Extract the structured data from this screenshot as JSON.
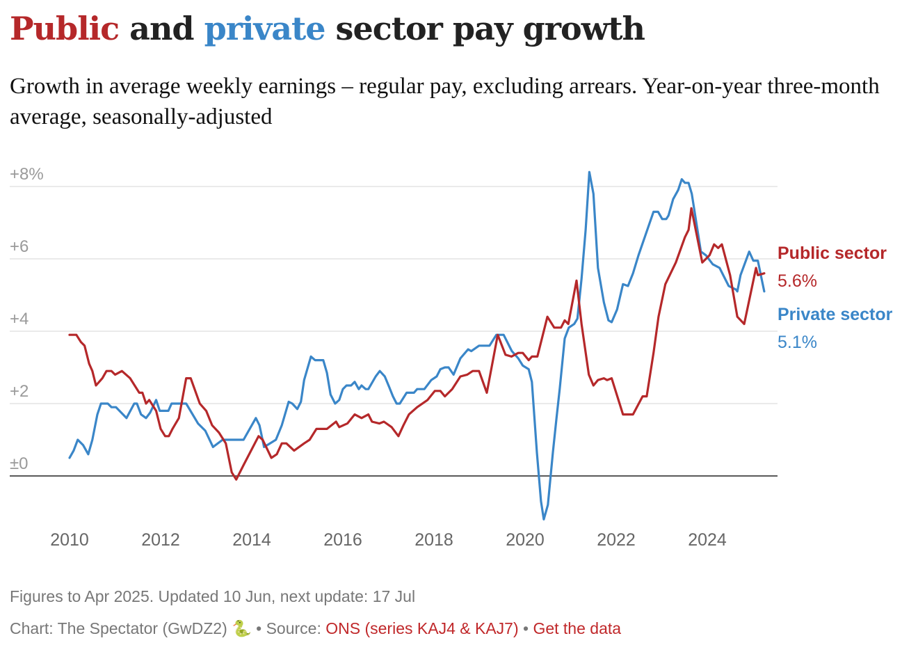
{
  "title": {
    "part1": "Public",
    "part2": " and ",
    "part3": "private",
    "part4": " sector pay growth"
  },
  "subtitle": "Growth in average weekly earnings – regular pay, excluding arrears. Year-on-year three-month average, seasonally-adjusted",
  "colors": {
    "public": "#b5282a",
    "private": "#3a86c8",
    "grid": "#e3e3e3",
    "axis": "#222"
  },
  "chart_data": {
    "type": "line",
    "title": "Public and private sector pay growth",
    "xlabel": "",
    "ylabel": "",
    "ylim": [
      -1.5,
      8.5
    ],
    "xlim": [
      2010,
      2025.25
    ],
    "grid": true,
    "yticks": [
      {
        "value": 8,
        "label": "+8%"
      },
      {
        "value": 6,
        "label": "+6"
      },
      {
        "value": 4,
        "label": "+4"
      },
      {
        "value": 2,
        "label": "+2"
      },
      {
        "value": 0,
        "label": "±0"
      }
    ],
    "xticks": [
      2010,
      2012,
      2014,
      2016,
      2018,
      2020,
      2022,
      2024
    ],
    "series": [
      {
        "name": "Public sector",
        "label": "Public sector",
        "end_label": "5.6%",
        "color": "#b5282a",
        "points": [
          [
            2010.0,
            3.9
          ],
          [
            2010.15,
            3.9
          ],
          [
            2010.25,
            3.7
          ],
          [
            2010.33,
            3.6
          ],
          [
            2010.43,
            3.1
          ],
          [
            2010.5,
            2.9
          ],
          [
            2010.58,
            2.5
          ],
          [
            2010.72,
            2.7
          ],
          [
            2010.81,
            2.9
          ],
          [
            2010.92,
            2.9
          ],
          [
            2011.0,
            2.8
          ],
          [
            2011.15,
            2.9
          ],
          [
            2011.33,
            2.7
          ],
          [
            2011.53,
            2.3
          ],
          [
            2011.6,
            2.3
          ],
          [
            2011.68,
            2.0
          ],
          [
            2011.75,
            2.1
          ],
          [
            2011.9,
            1.8
          ],
          [
            2012.0,
            1.3
          ],
          [
            2012.1,
            1.1
          ],
          [
            2012.18,
            1.1
          ],
          [
            2012.26,
            1.3
          ],
          [
            2012.4,
            1.6
          ],
          [
            2012.56,
            2.7
          ],
          [
            2012.66,
            2.7
          ],
          [
            2012.86,
            2.0
          ],
          [
            2013.0,
            1.8
          ],
          [
            2013.13,
            1.4
          ],
          [
            2013.28,
            1.2
          ],
          [
            2013.43,
            0.9
          ],
          [
            2013.56,
            0.1
          ],
          [
            2013.66,
            -0.1
          ],
          [
            2013.82,
            0.3
          ],
          [
            2014.15,
            1.1
          ],
          [
            2014.24,
            1.0
          ],
          [
            2014.43,
            0.5
          ],
          [
            2014.55,
            0.6
          ],
          [
            2014.66,
            0.9
          ],
          [
            2014.76,
            0.9
          ],
          [
            2014.93,
            0.7
          ],
          [
            2015.15,
            0.9
          ],
          [
            2015.27,
            1.0
          ],
          [
            2015.42,
            1.3
          ],
          [
            2015.65,
            1.3
          ],
          [
            2015.85,
            1.5
          ],
          [
            2015.92,
            1.35
          ],
          [
            2016.1,
            1.45
          ],
          [
            2016.26,
            1.7
          ],
          [
            2016.41,
            1.6
          ],
          [
            2016.56,
            1.7
          ],
          [
            2016.64,
            1.5
          ],
          [
            2016.8,
            1.45
          ],
          [
            2016.9,
            1.5
          ],
          [
            2017.07,
            1.35
          ],
          [
            2017.22,
            1.1
          ],
          [
            2017.33,
            1.4
          ],
          [
            2017.45,
            1.7
          ],
          [
            2017.63,
            1.9
          ],
          [
            2017.86,
            2.1
          ],
          [
            2018.02,
            2.35
          ],
          [
            2018.14,
            2.35
          ],
          [
            2018.24,
            2.2
          ],
          [
            2018.4,
            2.4
          ],
          [
            2018.58,
            2.75
          ],
          [
            2018.73,
            2.8
          ],
          [
            2018.85,
            2.9
          ],
          [
            2018.99,
            2.9
          ],
          [
            2019.16,
            2.3
          ],
          [
            2019.4,
            3.9
          ],
          [
            2019.57,
            3.35
          ],
          [
            2019.7,
            3.3
          ],
          [
            2019.85,
            3.4
          ],
          [
            2019.95,
            3.4
          ],
          [
            2020.08,
            3.2
          ],
          [
            2020.15,
            3.3
          ],
          [
            2020.27,
            3.3
          ],
          [
            2020.49,
            4.4
          ],
          [
            2020.64,
            4.1
          ],
          [
            2020.79,
            4.1
          ],
          [
            2020.87,
            4.3
          ],
          [
            2020.95,
            4.2
          ],
          [
            2021.13,
            5.4
          ],
          [
            2021.24,
            4.2
          ],
          [
            2021.4,
            2.8
          ],
          [
            2021.5,
            2.5
          ],
          [
            2021.6,
            2.65
          ],
          [
            2021.73,
            2.7
          ],
          [
            2021.8,
            2.65
          ],
          [
            2021.9,
            2.7
          ],
          [
            2022.15,
            1.7
          ],
          [
            2022.37,
            1.7
          ],
          [
            2022.58,
            2.2
          ],
          [
            2022.67,
            2.2
          ],
          [
            2022.82,
            3.4
          ],
          [
            2022.93,
            4.4
          ],
          [
            2023.08,
            5.3
          ],
          [
            2023.31,
            5.9
          ],
          [
            2023.51,
            6.6
          ],
          [
            2023.59,
            6.8
          ],
          [
            2023.65,
            7.4
          ],
          [
            2023.89,
            5.9
          ],
          [
            2024.05,
            6.1
          ],
          [
            2024.15,
            6.4
          ],
          [
            2024.24,
            6.3
          ],
          [
            2024.32,
            6.4
          ],
          [
            2024.5,
            5.55
          ],
          [
            2024.66,
            4.4
          ],
          [
            2024.81,
            4.2
          ],
          [
            2025.07,
            5.75
          ],
          [
            2025.11,
            5.55
          ],
          [
            2025.25,
            5.6
          ]
        ]
      },
      {
        "name": "Private sector",
        "label": "Private sector",
        "end_label": "5.1%",
        "color": "#3a86c8",
        "points": [
          [
            2010.0,
            0.5
          ],
          [
            2010.09,
            0.7
          ],
          [
            2010.18,
            1.0
          ],
          [
            2010.3,
            0.85
          ],
          [
            2010.41,
            0.6
          ],
          [
            2010.5,
            1.0
          ],
          [
            2010.61,
            1.7
          ],
          [
            2010.69,
            2.0
          ],
          [
            2010.84,
            2.0
          ],
          [
            2010.92,
            1.9
          ],
          [
            2011.02,
            1.9
          ],
          [
            2011.25,
            1.6
          ],
          [
            2011.42,
            2.0
          ],
          [
            2011.48,
            2.0
          ],
          [
            2011.57,
            1.7
          ],
          [
            2011.68,
            1.6
          ],
          [
            2011.77,
            1.75
          ],
          [
            2011.9,
            2.1
          ],
          [
            2011.98,
            1.8
          ],
          [
            2012.17,
            1.8
          ],
          [
            2012.24,
            2.0
          ],
          [
            2012.56,
            2.0
          ],
          [
            2012.82,
            1.45
          ],
          [
            2012.98,
            1.25
          ],
          [
            2013.15,
            0.8
          ],
          [
            2013.36,
            1.0
          ],
          [
            2013.51,
            1.0
          ],
          [
            2013.82,
            1.0
          ],
          [
            2014.09,
            1.6
          ],
          [
            2014.17,
            1.4
          ],
          [
            2014.27,
            0.8
          ],
          [
            2014.4,
            0.9
          ],
          [
            2014.53,
            1.0
          ],
          [
            2014.66,
            1.4
          ],
          [
            2014.81,
            2.05
          ],
          [
            2014.89,
            2.0
          ],
          [
            2015.0,
            1.85
          ],
          [
            2015.08,
            2.05
          ],
          [
            2015.15,
            2.65
          ],
          [
            2015.3,
            3.3
          ],
          [
            2015.39,
            3.2
          ],
          [
            2015.57,
            3.2
          ],
          [
            2015.65,
            2.85
          ],
          [
            2015.73,
            2.25
          ],
          [
            2015.83,
            2.0
          ],
          [
            2015.92,
            2.1
          ],
          [
            2016.0,
            2.4
          ],
          [
            2016.08,
            2.5
          ],
          [
            2016.18,
            2.5
          ],
          [
            2016.26,
            2.6
          ],
          [
            2016.35,
            2.4
          ],
          [
            2016.41,
            2.5
          ],
          [
            2016.5,
            2.4
          ],
          [
            2016.56,
            2.4
          ],
          [
            2016.72,
            2.75
          ],
          [
            2016.81,
            2.9
          ],
          [
            2016.92,
            2.75
          ],
          [
            2017.02,
            2.45
          ],
          [
            2017.1,
            2.2
          ],
          [
            2017.18,
            2.0
          ],
          [
            2017.25,
            2.0
          ],
          [
            2017.4,
            2.3
          ],
          [
            2017.56,
            2.3
          ],
          [
            2017.63,
            2.4
          ],
          [
            2017.79,
            2.4
          ],
          [
            2017.94,
            2.65
          ],
          [
            2018.06,
            2.75
          ],
          [
            2018.14,
            2.95
          ],
          [
            2018.24,
            3.0
          ],
          [
            2018.32,
            3.0
          ],
          [
            2018.43,
            2.8
          ],
          [
            2018.58,
            3.25
          ],
          [
            2018.75,
            3.5
          ],
          [
            2018.82,
            3.45
          ],
          [
            2018.99,
            3.6
          ],
          [
            2019.22,
            3.6
          ],
          [
            2019.37,
            3.9
          ],
          [
            2019.53,
            3.9
          ],
          [
            2019.71,
            3.45
          ],
          [
            2019.85,
            3.25
          ],
          [
            2019.95,
            3.05
          ],
          [
            2020.08,
            2.95
          ],
          [
            2020.15,
            2.6
          ],
          [
            2020.26,
            0.65
          ],
          [
            2020.35,
            -0.7
          ],
          [
            2020.41,
            -1.2
          ],
          [
            2020.5,
            -0.8
          ],
          [
            2020.61,
            0.65
          ],
          [
            2020.69,
            1.6
          ],
          [
            2020.76,
            2.4
          ],
          [
            2020.87,
            3.8
          ],
          [
            2020.96,
            4.1
          ],
          [
            2021.08,
            4.2
          ],
          [
            2021.15,
            4.35
          ],
          [
            2021.24,
            5.45
          ],
          [
            2021.33,
            6.8
          ],
          [
            2021.41,
            8.4
          ],
          [
            2021.5,
            7.8
          ],
          [
            2021.6,
            5.75
          ],
          [
            2021.73,
            4.8
          ],
          [
            2021.83,
            4.3
          ],
          [
            2021.9,
            4.25
          ],
          [
            2022.02,
            4.6
          ],
          [
            2022.15,
            5.3
          ],
          [
            2022.26,
            5.25
          ],
          [
            2022.37,
            5.6
          ],
          [
            2022.49,
            6.1
          ],
          [
            2022.82,
            7.3
          ],
          [
            2022.92,
            7.3
          ],
          [
            2023.01,
            7.1
          ],
          [
            2023.1,
            7.1
          ],
          [
            2023.15,
            7.2
          ],
          [
            2023.25,
            7.65
          ],
          [
            2023.36,
            7.9
          ],
          [
            2023.44,
            8.2
          ],
          [
            2023.51,
            8.1
          ],
          [
            2023.59,
            8.1
          ],
          [
            2023.66,
            7.8
          ],
          [
            2023.86,
            6.2
          ],
          [
            2023.97,
            6.1
          ],
          [
            2024.12,
            5.85
          ],
          [
            2024.27,
            5.75
          ],
          [
            2024.47,
            5.25
          ],
          [
            2024.63,
            5.15
          ],
          [
            2024.66,
            5.1
          ],
          [
            2024.73,
            5.55
          ],
          [
            2024.92,
            6.2
          ],
          [
            2025.01,
            5.95
          ],
          [
            2025.11,
            5.95
          ],
          [
            2025.25,
            5.1
          ]
        ]
      }
    ]
  },
  "footer": {
    "note": "Figures to Apr 2025. Updated 10 Jun, next update: 17 Jul",
    "credit": "Chart: The Spectator (GwDZ2) 🐍 • Source: ",
    "source_link": "ONS (series KAJ4 & KAJ7)",
    "separator": " • ",
    "data_link": "Get the data"
  }
}
